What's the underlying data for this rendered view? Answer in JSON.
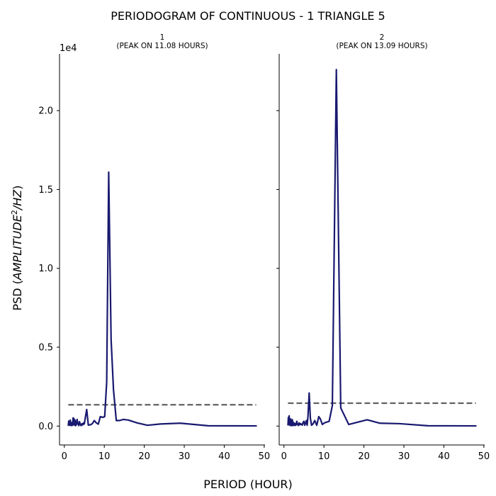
{
  "title": "PERIODOGRAM OF CONTINUOUS - 1 TRIANGLE 5",
  "xlabel": "PERIOD (HOUR)",
  "ylabel": "PSD (AMPLITUDE²/HZ)",
  "y_offset_label": "1e4",
  "colors": {
    "series": "#191970",
    "threshold": "#606060"
  },
  "chart_data": [
    {
      "type": "line",
      "title": "1",
      "subtitle": "(PEAK ON 11.08 HOURS)",
      "xlim": [
        -1.2,
        50.2
      ],
      "ylim": [
        -1200,
        23600
      ],
      "xticks": [
        0,
        10,
        20,
        30,
        40,
        50
      ],
      "yticks": [
        0,
        5000,
        10000,
        15000,
        20000
      ],
      "ytick_labels": [
        "0.0",
        "0.5",
        "1.0",
        "1.5",
        "2.0"
      ],
      "threshold": {
        "value": 1350,
        "x_range": [
          1,
          48
        ]
      },
      "series": [
        {
          "x": [
            1.0,
            1.1,
            1.2,
            1.3,
            1.4,
            1.5,
            1.6,
            1.7,
            1.8,
            1.9,
            2.0,
            2.1,
            2.2,
            2.3,
            2.4,
            2.5,
            2.6,
            2.7,
            2.8,
            2.9,
            3.0,
            3.2,
            3.4,
            3.6,
            3.8,
            4.0,
            4.2,
            4.4,
            4.6,
            4.8,
            5.0,
            5.3,
            5.6,
            6.0,
            6.5,
            7.0,
            7.5,
            8.0,
            8.5,
            9.0,
            9.6,
            10.1,
            10.6,
            11.1,
            11.7,
            12.3,
            13.0,
            13.8,
            14.8,
            16.0,
            18.2,
            20.8,
            24.0,
            29.0,
            36.0,
            48.0
          ],
          "values": [
            50,
            320,
            80,
            150,
            40,
            380,
            60,
            200,
            30,
            180,
            250,
            50,
            520,
            100,
            480,
            120,
            60,
            380,
            20,
            200,
            80,
            420,
            150,
            30,
            280,
            90,
            30,
            150,
            70,
            200,
            130,
            600,
            1050,
            60,
            80,
            150,
            350,
            200,
            120,
            600,
            550,
            600,
            2800,
            16100,
            5500,
            2300,
            350,
            350,
            420,
            380,
            200,
            50,
            130,
            180,
            20,
            10
          ]
        }
      ]
    },
    {
      "type": "line",
      "title": "2",
      "subtitle": "(PEAK ON 13.09 HOURS)",
      "xlim": [
        -1.2,
        50.2
      ],
      "ylim": [
        -1200,
        23600
      ],
      "xticks": [
        0,
        10,
        20,
        30,
        40,
        50
      ],
      "yticks": [
        0,
        5000,
        10000,
        15000,
        20000
      ],
      "ytick_labels": [
        "0.0",
        "0.5",
        "1.0",
        "1.5",
        "2.0"
      ],
      "threshold": {
        "value": 1450,
        "x_range": [
          1,
          48
        ]
      },
      "series": [
        {
          "x": [
            1.0,
            1.1,
            1.2,
            1.3,
            1.4,
            1.5,
            1.6,
            1.7,
            1.8,
            1.9,
            2.0,
            2.1,
            2.2,
            2.3,
            2.4,
            2.5,
            2.6,
            2.7,
            2.8,
            2.9,
            3.0,
            3.2,
            3.4,
            3.6,
            3.8,
            4.0,
            4.2,
            4.4,
            4.6,
            4.8,
            5.0,
            5.2,
            5.4,
            5.6,
            5.8,
            6.0,
            6.3,
            6.6,
            6.9,
            7.3,
            7.7,
            8.2,
            8.7,
            9.1,
            9.6,
            10.1,
            10.7,
            11.3,
            12.1,
            13.1,
            14.2,
            16.2,
            20.8,
            24.0,
            29.0,
            36.0,
            48.0
          ],
          "values": [
            80,
            550,
            150,
            650,
            50,
            300,
            100,
            450,
            20,
            200,
            150,
            400,
            30,
            250,
            100,
            50,
            180,
            120,
            40,
            150,
            60,
            300,
            100,
            40,
            200,
            80,
            150,
            100,
            60,
            250,
            300,
            50,
            200,
            350,
            50,
            600,
            2100,
            500,
            50,
            150,
            350,
            50,
            600,
            450,
            100,
            200,
            250,
            300,
            1300,
            22600,
            1150,
            100,
            400,
            180,
            150,
            20,
            10
          ]
        }
      ]
    }
  ]
}
